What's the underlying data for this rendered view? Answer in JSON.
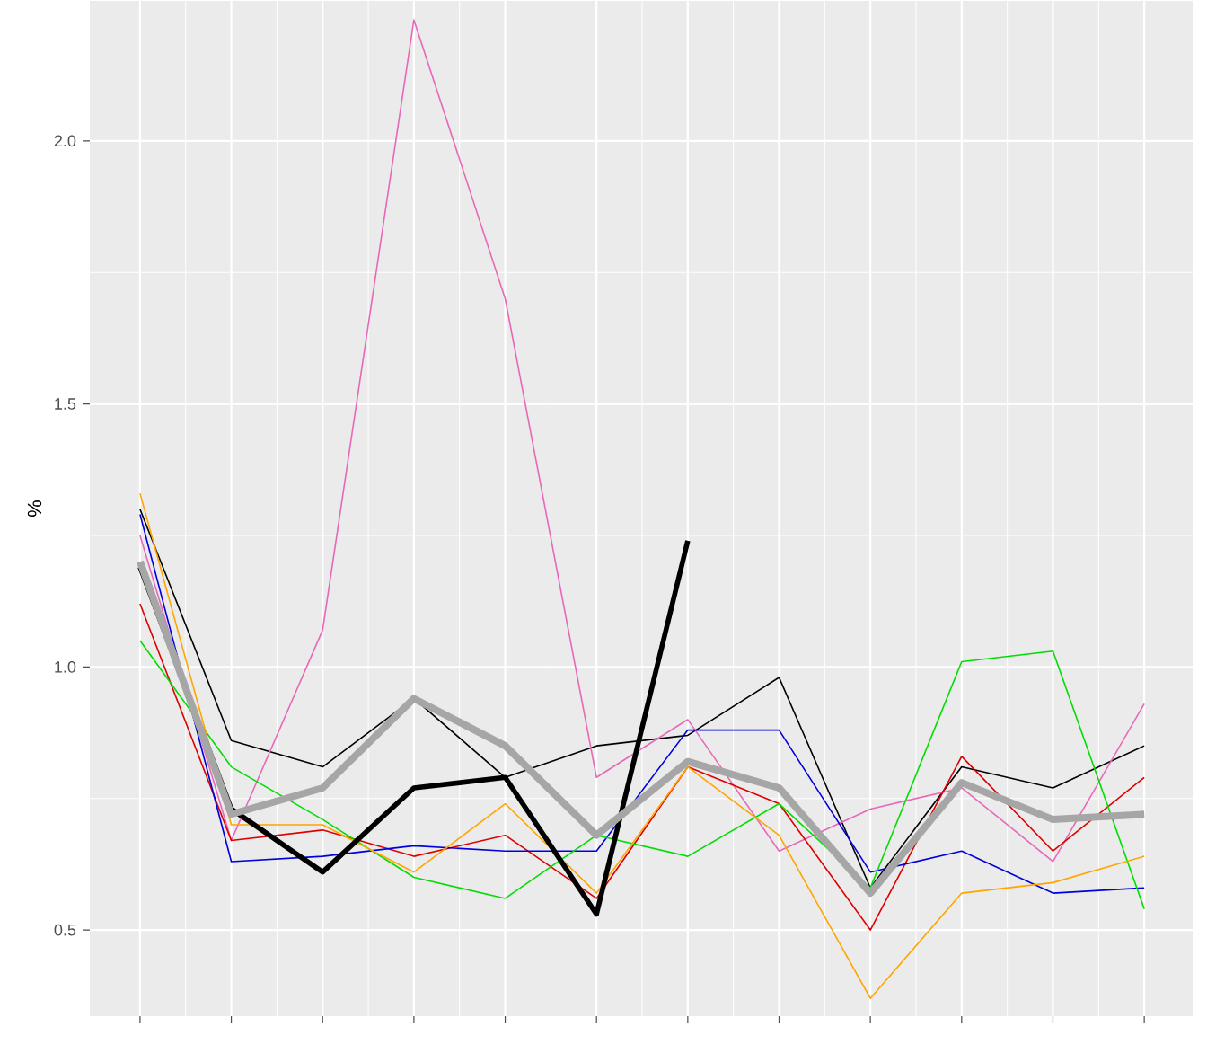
{
  "chart_data": {
    "type": "line",
    "ylabel": "%",
    "categories": [
      null,
      null,
      null,
      null,
      null,
      null,
      null,
      null,
      null,
      null,
      null,
      null
    ],
    "series": [
      {
        "color": "#000000",
        "values": [
          1.3,
          0.86,
          0.81,
          0.94,
          0.79,
          0.85,
          0.87,
          0.98,
          0.58,
          0.81,
          0.77,
          0.85
        ]
      },
      {
        "color": "#e868b8",
        "values": [
          1.25,
          0.67,
          1.07,
          2.23,
          1.7,
          0.79,
          0.9,
          0.65,
          0.73,
          0.77,
          0.63,
          0.93
        ]
      },
      {
        "color": "#dd0000",
        "values": [
          1.12,
          0.67,
          0.69,
          0.64,
          0.68,
          0.56,
          0.81,
          0.74,
          0.5,
          0.83,
          0.65,
          0.79
        ]
      },
      {
        "color": "#0000dd",
        "values": [
          1.29,
          0.63,
          0.64,
          0.66,
          0.65,
          0.65,
          0.88,
          0.88,
          0.61,
          0.65,
          0.57,
          0.58
        ]
      },
      {
        "color": "#00dd00",
        "values": [
          1.05,
          0.81,
          0.71,
          0.6,
          0.56,
          0.68,
          0.64,
          0.74,
          0.58,
          1.01,
          1.03,
          0.54
        ]
      },
      {
        "color": "#ffa500",
        "values": [
          1.33,
          0.7,
          0.7,
          0.61,
          0.74,
          0.57,
          0.81,
          0.68,
          0.37,
          0.57,
          0.59,
          0.64
        ]
      },
      {
        "color": "#000000",
        "values": [
          1.19,
          0.73,
          0.61,
          0.77,
          0.79,
          0.53,
          1.24,
          null,
          null,
          null,
          null,
          null
        ]
      },
      {
        "color": "#a6a6a6",
        "values": [
          1.2,
          0.72,
          0.77,
          0.94,
          0.85,
          0.68,
          0.82,
          0.77,
          0.57,
          0.78,
          0.71,
          0.72
        ]
      }
    ],
    "ylim": [
      0.336,
      2.266
    ],
    "yticks": [
      0.5,
      {
        "value": 1.0,
        "label": "1.0"
      },
      1.5,
      {
        "value": 2.0,
        "label": "2.0"
      }
    ],
    "tick_labels": "y",
    "grid": true,
    "marker": "none",
    "line_style": "solid"
  }
}
